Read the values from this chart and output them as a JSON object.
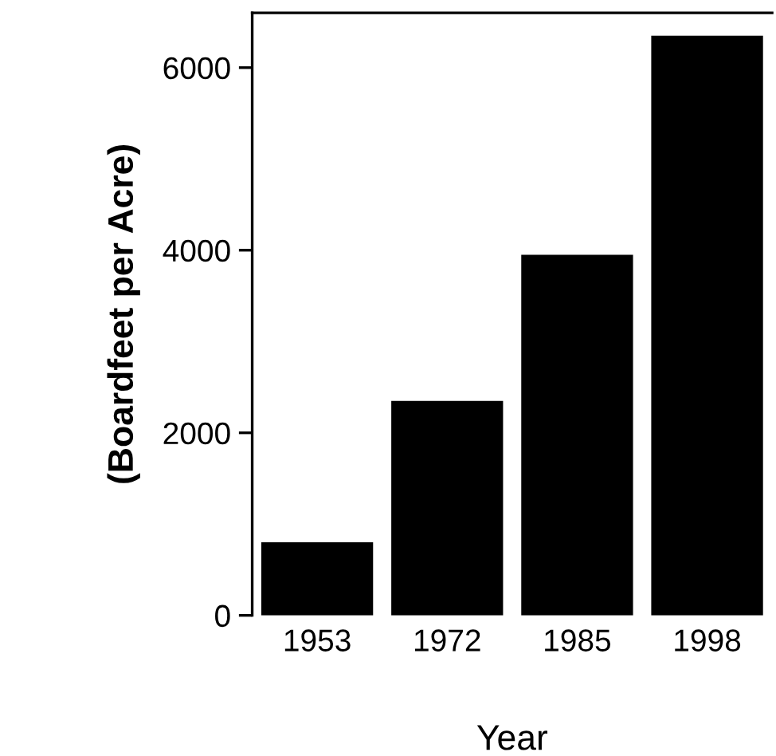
{
  "chart_data": {
    "type": "bar",
    "xlabel": "Year",
    "ylabel": "(Boardfeet per Acre)",
    "categories": [
      "1953",
      "1972",
      "1985",
      "1998"
    ],
    "values": [
      800,
      2350,
      3950,
      6350
    ],
    "color": "#000000",
    "ylim": [
      0,
      6600
    ],
    "yticks": [
      0,
      2000,
      4000,
      6000
    ],
    "grid": false,
    "legend": false
  }
}
